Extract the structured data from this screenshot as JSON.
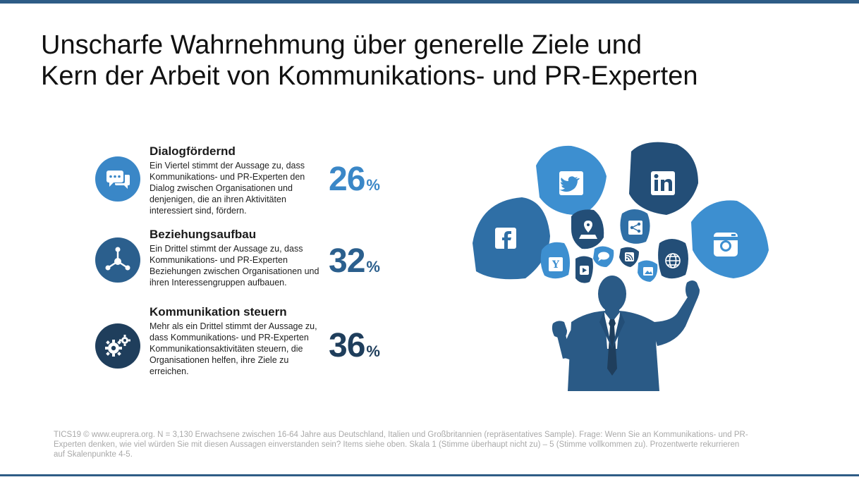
{
  "title": {
    "line1": "Unscharfe Wahrnehmung über generelle Ziele und",
    "line2": "Kern der Arbeit von Kommunikations- und PR-Experten"
  },
  "items": [
    {
      "heading": "Dialogfördernd",
      "text": "Ein Viertel stimmt der Aussage zu, dass Kommunikations- und PR-Experten den Dialog zwischen Organisationen und denjenigen, die an ihren Aktivitäten interessiert sind, fördern.",
      "value": "26",
      "unit": "%",
      "icon": "chat-bubbles-icon",
      "color": "#3a87c7"
    },
    {
      "heading": "Beziehungsaufbau",
      "text": "Ein Drittel stimmt der Aussage zu, dass Kommunikations- und PR-Experten Beziehungen zwischen Organisationen und ihren Interessengruppen aufbauen.",
      "value": "32",
      "unit": "%",
      "icon": "network-icon",
      "color": "#2b5f8d"
    },
    {
      "heading": "Kommunikation steuern",
      "text": "Mehr als ein Drittel stimmt der Aussage zu, dass Kommunikations- und PR-Experten Kommunikationsaktivitäten steuern, die Organisationen helfen, ihre Ziele zu erreichen.",
      "value": "36",
      "unit": "%",
      "icon": "gears-icon",
      "color": "#1f3e5c"
    }
  ],
  "footer": "TICS19 © www.euprera.org. N = 3,130 Erwachsene zwischen 16-64 Jahre aus Deutschland, Italien und Großbritannien (repräsentatives Sample). Frage: Wenn Sie an Kommunikations- und PR-Experten denken, wie viel würden Sie mit diesen Aussagen einverstanden sein? Items siehe oben. Skala 1 (Stimme überhaupt nicht zu) – 5 (Stimme vollkommen zu). Prozentwerte rekurrieren auf Skalenpunkte 4-5.",
  "illustration": {
    "icons": [
      "twitter-icon",
      "linkedin-icon",
      "facebook-icon",
      "instagram-icon",
      "map-pin-icon",
      "share-icon",
      "yahoo-icon",
      "youtube-icon",
      "chat-icon",
      "rss-icon",
      "image-icon",
      "globe-icon"
    ],
    "colors": {
      "light": "#3d8fd0",
      "mid": "#2f6fa6",
      "dark": "#234e77",
      "figure": "#2a5a86"
    }
  }
}
